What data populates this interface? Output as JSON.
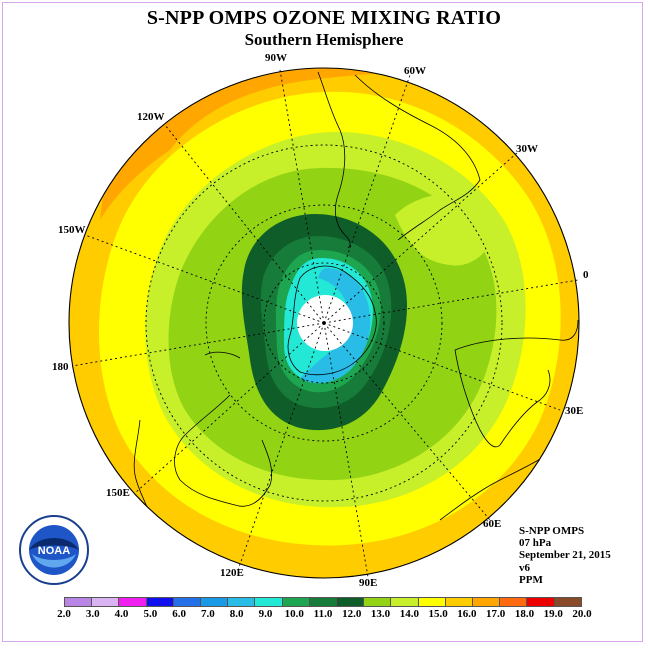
{
  "title": "S-NPP OMPS OZONE MIXING RATIO",
  "subtitle": "Southern Hemisphere",
  "longitude_labels": [
    "90W",
    "60W",
    "30W",
    "0",
    "30E",
    "60E",
    "90E",
    "120E",
    "150E",
    "180",
    "150W",
    "120W"
  ],
  "info": {
    "instrument": "S-NPP OMPS",
    "pressure": "07 hPa",
    "date": "September 21, 2015",
    "version": "v6",
    "units": "PPM"
  },
  "logo": {
    "text": "NOAA",
    "icon": "noaa-logo"
  },
  "colorbar": {
    "ticks": [
      "2.0",
      "3.0",
      "4.0",
      "5.0",
      "6.0",
      "7.0",
      "8.0",
      "9.0",
      "10.0",
      "11.0",
      "12.0",
      "13.0",
      "14.0",
      "15.0",
      "16.0",
      "17.0",
      "18.0",
      "19.0",
      "20.0"
    ],
    "colors": [
      "#b986e6",
      "#d9b3f2",
      "#f01ff0",
      "#1010ee",
      "#2470e8",
      "#1a9ae6",
      "#28bce6",
      "#24e8d6",
      "#1ea550",
      "#177c3a",
      "#0f5e2a",
      "#92d414",
      "#c8f02a",
      "#ffff00",
      "#ffcc00",
      "#ffa600",
      "#ff6a10",
      "#ee0000",
      "#8a4a2a"
    ]
  }
}
